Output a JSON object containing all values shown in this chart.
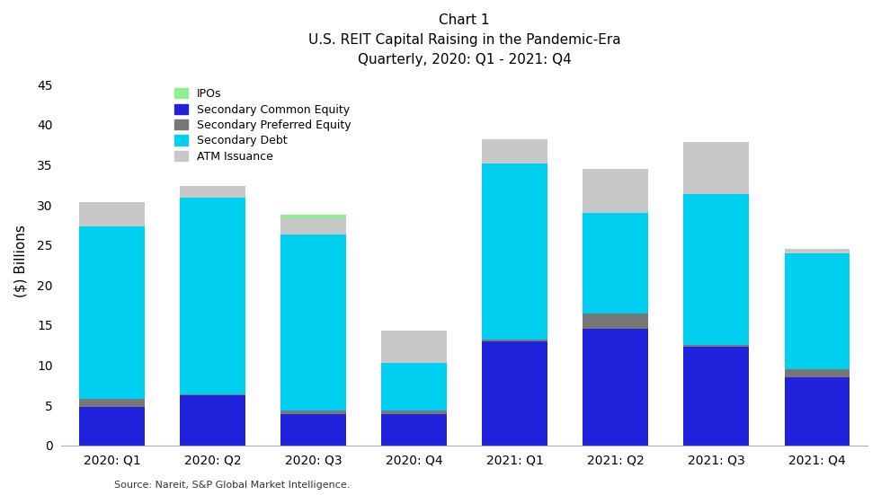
{
  "categories": [
    "2020: Q1",
    "2020: Q2",
    "2020: Q3",
    "2020: Q4",
    "2021: Q1",
    "2021: Q2",
    "2021: Q3",
    "2021: Q4"
  ],
  "series": {
    "Secondary Common Equity": [
      4.8,
      6.2,
      3.9,
      3.9,
      13.0,
      14.5,
      12.3,
      8.5
    ],
    "Secondary Preferred Equity": [
      1.0,
      0.2,
      0.4,
      0.4,
      0.2,
      2.0,
      0.2,
      1.0
    ],
    "Secondary Debt": [
      21.5,
      24.5,
      22.0,
      6.0,
      22.0,
      12.5,
      18.8,
      14.5
    ],
    "ATM Issuance": [
      3.0,
      1.5,
      2.0,
      4.0,
      3.0,
      5.5,
      6.5,
      0.5
    ],
    "IPOs": [
      0.0,
      0.0,
      0.5,
      0.0,
      0.0,
      0.0,
      0.0,
      0.0
    ]
  },
  "colors": {
    "Secondary Common Equity": "#2222DD",
    "Secondary Preferred Equity": "#777777",
    "Secondary Debt": "#00CFEF",
    "ATM Issuance": "#C8C8C8",
    "IPOs": "#90EE90"
  },
  "legend_order": [
    "IPOs",
    "Secondary Common Equity",
    "Secondary Preferred Equity",
    "Secondary Debt",
    "ATM Issuance"
  ],
  "title_line1": "Chart 1",
  "title_line2": "U.S. REIT Capital Raising in the Pandemic-Era",
  "title_line3": "Quarterly, 2020: Q1 - 2021: Q4",
  "ylabel": "($) Billions",
  "ylim": [
    0,
    46
  ],
  "yticks": [
    0,
    5,
    10,
    15,
    20,
    25,
    30,
    35,
    40,
    45
  ],
  "source": "Source: Nareit, S&P Global Market Intelligence.",
  "background_color": "#ffffff",
  "bar_width": 0.65
}
